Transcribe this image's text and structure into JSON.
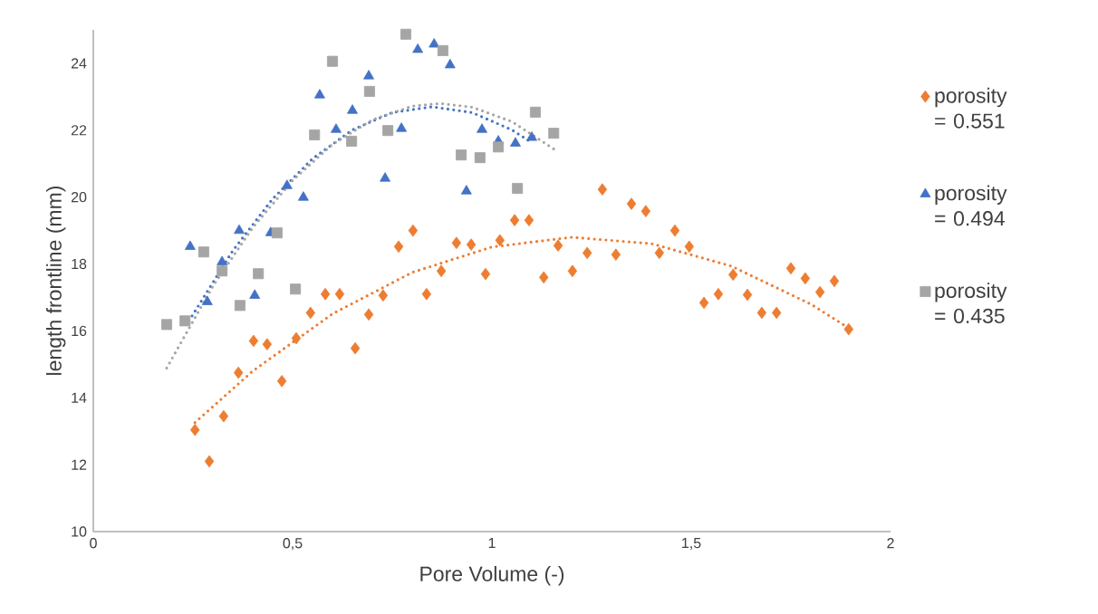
{
  "chart_data": {
    "type": "scatter",
    "xlabel": "Pore Volume (-)",
    "ylabel": "length frontline (mm)",
    "xlim": [
      0,
      2
    ],
    "ylim": [
      10,
      25
    ],
    "xticks": [
      0,
      {
        "value": 0.5,
        "label": "0,5"
      },
      1,
      {
        "value": 1.5,
        "label": "1,5"
      },
      2
    ],
    "yticks": [
      10,
      12,
      14,
      16,
      18,
      20,
      22,
      24
    ],
    "grid": false,
    "legend": "right",
    "series": [
      {
        "name": "porosity = 0.551",
        "color": "#ed7d31",
        "marker": "diamond",
        "x": [
          0.255,
          0.291,
          0.327,
          0.364,
          0.402,
          0.436,
          0.473,
          0.509,
          0.545,
          0.582,
          0.618,
          0.657,
          0.691,
          0.727,
          0.766,
          0.802,
          0.836,
          0.873,
          0.911,
          0.948,
          0.984,
          1.02,
          1.057,
          1.093,
          1.13,
          1.166,
          1.202,
          1.239,
          1.277,
          1.311,
          1.35,
          1.386,
          1.42,
          1.459,
          1.495,
          1.532,
          1.568,
          1.605,
          1.641,
          1.677,
          1.714,
          1.75,
          1.786,
          1.823,
          1.859,
          1.895
        ],
        "values": [
          13.04,
          12.1,
          13.45,
          14.75,
          15.7,
          15.6,
          14.5,
          15.78,
          16.54,
          17.1,
          17.1,
          15.48,
          16.49,
          17.06,
          18.52,
          19.0,
          17.1,
          17.79,
          18.63,
          18.58,
          17.7,
          18.71,
          19.31,
          19.31,
          17.6,
          18.55,
          17.79,
          18.33,
          20.23,
          18.28,
          19.8,
          19.58,
          18.33,
          19.0,
          18.52,
          16.84,
          17.1,
          17.68,
          17.08,
          16.54,
          16.54,
          17.87,
          17.57,
          17.16,
          17.49,
          16.05
        ]
      },
      {
        "name": "porosity = 0.494",
        "color": "#4472c4",
        "marker": "triangle",
        "x": [
          0.243,
          0.286,
          0.323,
          0.366,
          0.405,
          0.445,
          0.486,
          0.527,
          0.568,
          0.609,
          0.65,
          0.691,
          0.732,
          0.773,
          0.814,
          0.855,
          0.895,
          0.936,
          0.975,
          1.016,
          1.059,
          1.1
        ],
        "values": [
          18.52,
          16.87,
          18.06,
          19.0,
          17.06,
          18.93,
          20.34,
          19.99,
          23.05,
          22.02,
          22.59,
          23.62,
          20.56,
          22.05,
          24.41,
          24.57,
          23.95,
          20.18,
          22.02,
          21.67,
          21.61,
          21.78
        ]
      },
      {
        "name": "porosity = 0.435",
        "color": "#a5a5a5",
        "marker": "square",
        "x": [
          0.184,
          0.23,
          0.277,
          0.323,
          0.368,
          0.414,
          0.461,
          0.507,
          0.555,
          0.6,
          0.648,
          0.693,
          0.739,
          0.784,
          0.877,
          0.923,
          0.97,
          1.016,
          1.064,
          1.109,
          1.155
        ],
        "values": [
          16.19,
          16.3,
          18.36,
          17.79,
          16.76,
          17.71,
          18.93,
          17.25,
          21.86,
          24.06,
          21.67,
          23.16,
          21.99,
          24.87,
          24.38,
          21.26,
          21.18,
          21.5,
          20.26,
          22.54,
          21.91
        ]
      },
      {
        "type": "line",
        "color": "#ed7d31",
        "line_style": "dotted",
        "x": [
          0.255,
          0.4,
          0.6,
          0.8,
          1.0,
          1.2,
          1.4,
          1.6,
          1.8,
          1.9
        ],
        "values": [
          13.26,
          14.8,
          16.51,
          17.75,
          18.51,
          18.8,
          18.61,
          17.94,
          16.8,
          16.05
        ]
      },
      {
        "type": "line",
        "color": "#4472c4",
        "line_style": "dotted",
        "x": [
          0.24,
          0.35,
          0.45,
          0.55,
          0.65,
          0.75,
          0.85,
          0.95,
          1.05,
          1.1
        ],
        "values": [
          16.3,
          18.4,
          19.95,
          21.15,
          22.01,
          22.53,
          22.7,
          22.53,
          22.01,
          21.63
        ]
      },
      {
        "type": "line",
        "color": "#a5a5a5",
        "line_style": "dotted",
        "x": [
          0.184,
          0.3,
          0.4,
          0.5,
          0.6,
          0.7,
          0.8,
          0.87,
          0.95,
          1.05,
          1.155
        ],
        "values": [
          14.89,
          17.34,
          19.09,
          20.5,
          21.58,
          22.31,
          22.72,
          22.8,
          22.69,
          22.26,
          21.44
        ]
      }
    ]
  }
}
